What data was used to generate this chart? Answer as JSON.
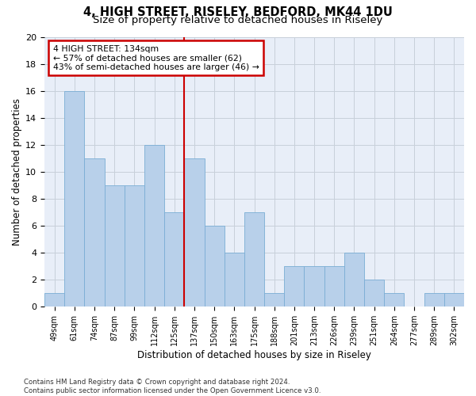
{
  "title": "4, HIGH STREET, RISELEY, BEDFORD, MK44 1DU",
  "subtitle": "Size of property relative to detached houses in Riseley",
  "xlabel": "Distribution of detached houses by size in Riseley",
  "ylabel": "Number of detached properties",
  "categories": [
    "49sqm",
    "61sqm",
    "74sqm",
    "87sqm",
    "99sqm",
    "112sqm",
    "125sqm",
    "137sqm",
    "150sqm",
    "163sqm",
    "175sqm",
    "188sqm",
    "201sqm",
    "213sqm",
    "226sqm",
    "239sqm",
    "251sqm",
    "264sqm",
    "277sqm",
    "289sqm",
    "302sqm"
  ],
  "values": [
    1,
    16,
    11,
    9,
    9,
    12,
    7,
    11,
    6,
    4,
    7,
    1,
    3,
    3,
    3,
    4,
    2,
    1,
    0,
    1,
    1
  ],
  "bar_color": "#b8d0ea",
  "bar_edge_color": "#7aadd4",
  "grid_color": "#c8d0da",
  "background_color": "#e8eef8",
  "annotation_text": "4 HIGH STREET: 134sqm\n← 57% of detached houses are smaller (62)\n43% of semi-detached houses are larger (46) →",
  "annotation_box_color": "#ffffff",
  "annotation_box_edge": "#cc0000",
  "vline_color": "#cc0000",
  "ylim": [
    0,
    20
  ],
  "yticks": [
    0,
    2,
    4,
    6,
    8,
    10,
    12,
    14,
    16,
    18,
    20
  ],
  "footnote": "Contains HM Land Registry data © Crown copyright and database right 2024.\nContains public sector information licensed under the Open Government Licence v3.0.",
  "title_fontsize": 10.5,
  "subtitle_fontsize": 9.5,
  "xlabel_fontsize": 8.5,
  "ylabel_fontsize": 8.5
}
